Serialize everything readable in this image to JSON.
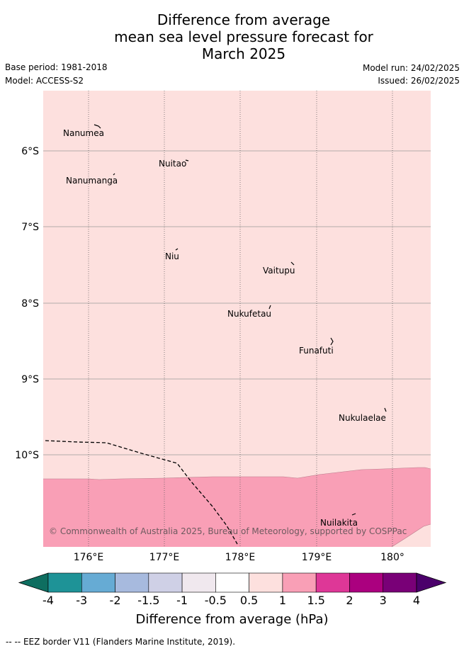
{
  "header": {
    "title_lines": [
      "Difference from average",
      "mean sea level pressure forecast for",
      "March 2025"
    ],
    "base_period": "Base period: 1981-2018",
    "model": "Model: ACCESS-S2",
    "model_run": "Model run: 24/02/2025",
    "issued": "Issued: 26/02/2025"
  },
  "map": {
    "lat_labels": [
      "6°S",
      "7°S",
      "8°S",
      "9°S",
      "10°S"
    ],
    "lon_labels": [
      "176°E",
      "177°E",
      "178°E",
      "179°E",
      "180°"
    ],
    "places": [
      {
        "name": "Nanumea"
      },
      {
        "name": "Nuitao"
      },
      {
        "name": "Nanumanga"
      },
      {
        "name": "Niu"
      },
      {
        "name": "Vaitupu"
      },
      {
        "name": "Nukufetau"
      },
      {
        "name": "Funafuti"
      },
      {
        "name": "Nukulaelae"
      },
      {
        "name": "Nuilakita"
      }
    ],
    "copyright": "© Commonwealth of Australia 2025, Bureau of Meteorology, supported by COSPPac",
    "colors": {
      "band_0.5_1": "#fde0de",
      "band_1_1.5": "#f99fb6"
    }
  },
  "colorbar": {
    "ticks": [
      "-4",
      "-3",
      "-2",
      "-1.5",
      "-1",
      "-0.5",
      "0.5",
      "1",
      "1.5",
      "2",
      "3",
      "4"
    ],
    "colors": [
      "#0e6e60",
      "#1e9397",
      "#66abd4",
      "#a7bade",
      "#cfd0e6",
      "#f0e8ee",
      "#ffffff",
      "#fde0de",
      "#f99fb6",
      "#de3797",
      "#ab007f",
      "#790077",
      "#4b006b"
    ],
    "label": "Difference from average (hPa)"
  },
  "legend": {
    "text": "-- EEZ border V11 (Flanders Marine Institute, 2019)."
  }
}
